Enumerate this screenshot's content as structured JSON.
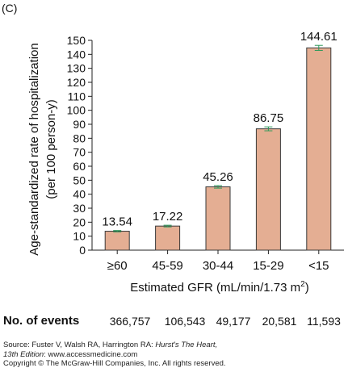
{
  "panel_label": "(C)",
  "chart_data": {
    "type": "bar",
    "title": "",
    "xlabel": "Estimated GFR (mL/min/1.73 m",
    "xlabel_sup": "2",
    "xlabel_tail": ")",
    "ylabel_line1": "Age-standardized rate of hospitalization",
    "ylabel_line2": "(per 100 person-y)",
    "categories": [
      "≥60",
      "45-59",
      "30-44",
      "15-29",
      "<15"
    ],
    "values": [
      13.54,
      17.22,
      45.26,
      86.75,
      144.61
    ],
    "value_labels": [
      "13.54",
      "17.22",
      "45.26",
      "86.75",
      "144.61"
    ],
    "error": [
      0.5,
      0.6,
      0.9,
      1.4,
      1.8
    ],
    "ylim": [
      0,
      150
    ],
    "yticks": [
      0,
      10,
      20,
      30,
      40,
      50,
      60,
      70,
      80,
      90,
      100,
      110,
      120,
      130,
      140,
      150
    ],
    "bar_color": "#e4ae93",
    "bar_edge_color": "#3a3a3a",
    "error_color": "#2e9a5a",
    "grid": false
  },
  "events": {
    "label": "No. of events",
    "values": [
      "366,757",
      "106,543",
      "49,177",
      "20,581",
      "11,593"
    ]
  },
  "source": {
    "prefix": "Source: Fuster V, Walsh RA, Harrington RA: ",
    "title": "Hurst's The Heart,",
    "edition": "13th Edition",
    "url": ": www.accessmedicine.com",
    "copyright": "Copyright © The McGraw-Hill Companies, Inc. All rights reserved."
  }
}
